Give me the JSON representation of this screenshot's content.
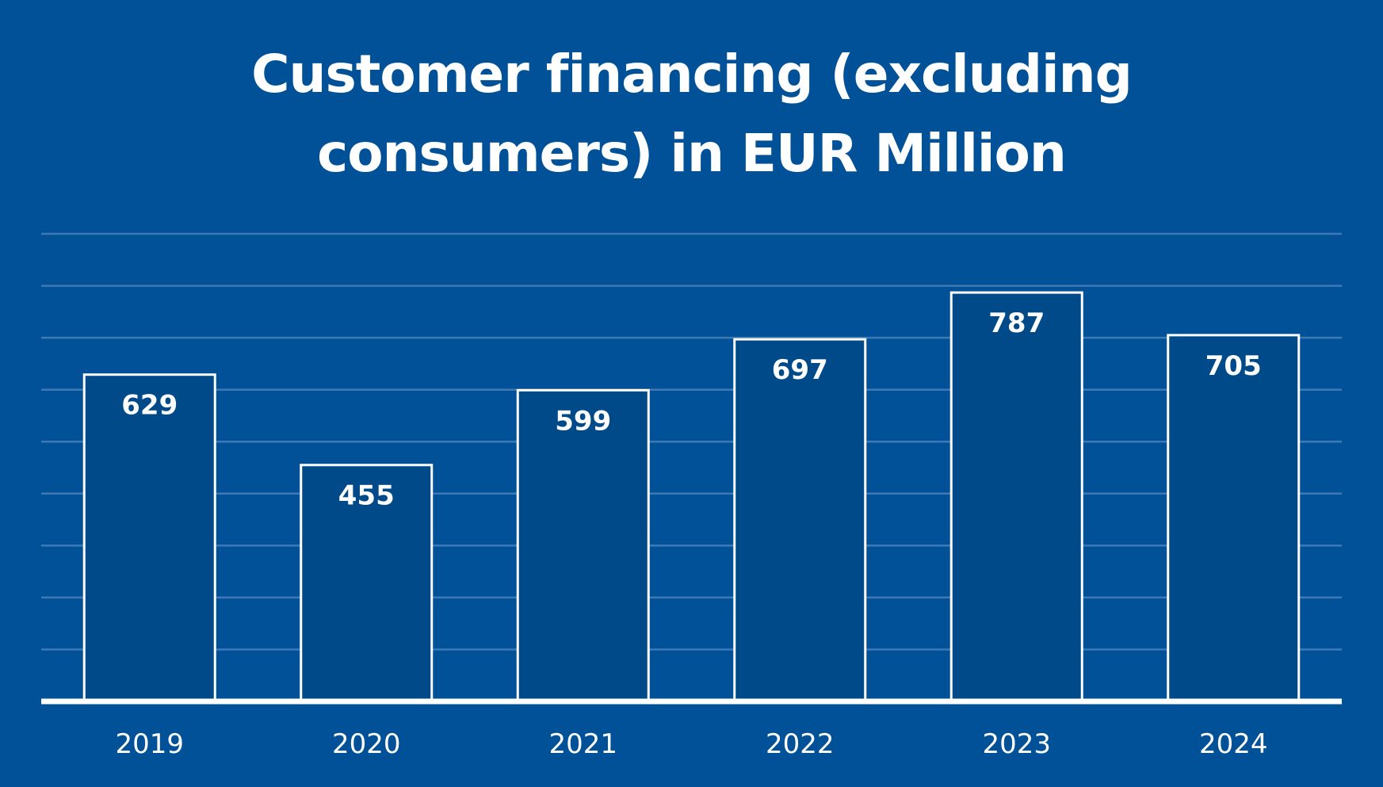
{
  "chart_data": {
    "type": "bar",
    "title_lines": [
      "Customer financing (excluding",
      "consumers) in EUR Million"
    ],
    "categories": [
      "2019",
      "2020",
      "2021",
      "2022",
      "2023",
      "2024"
    ],
    "values": [
      629,
      455,
      599,
      697,
      787,
      705
    ],
    "data_labels": [
      "629",
      "455",
      "599",
      "697",
      "787",
      "705"
    ],
    "xlabel": "",
    "ylabel": "",
    "ylim": [
      0,
      900
    ],
    "grid": true,
    "legend": "none"
  },
  "colors": {
    "background": "#005197",
    "bar_fill": "#004a8a",
    "bar_stroke": "#ffffff",
    "gridline": "#3f79b5",
    "baseline": "#ffffff",
    "text": "#ffffff"
  }
}
